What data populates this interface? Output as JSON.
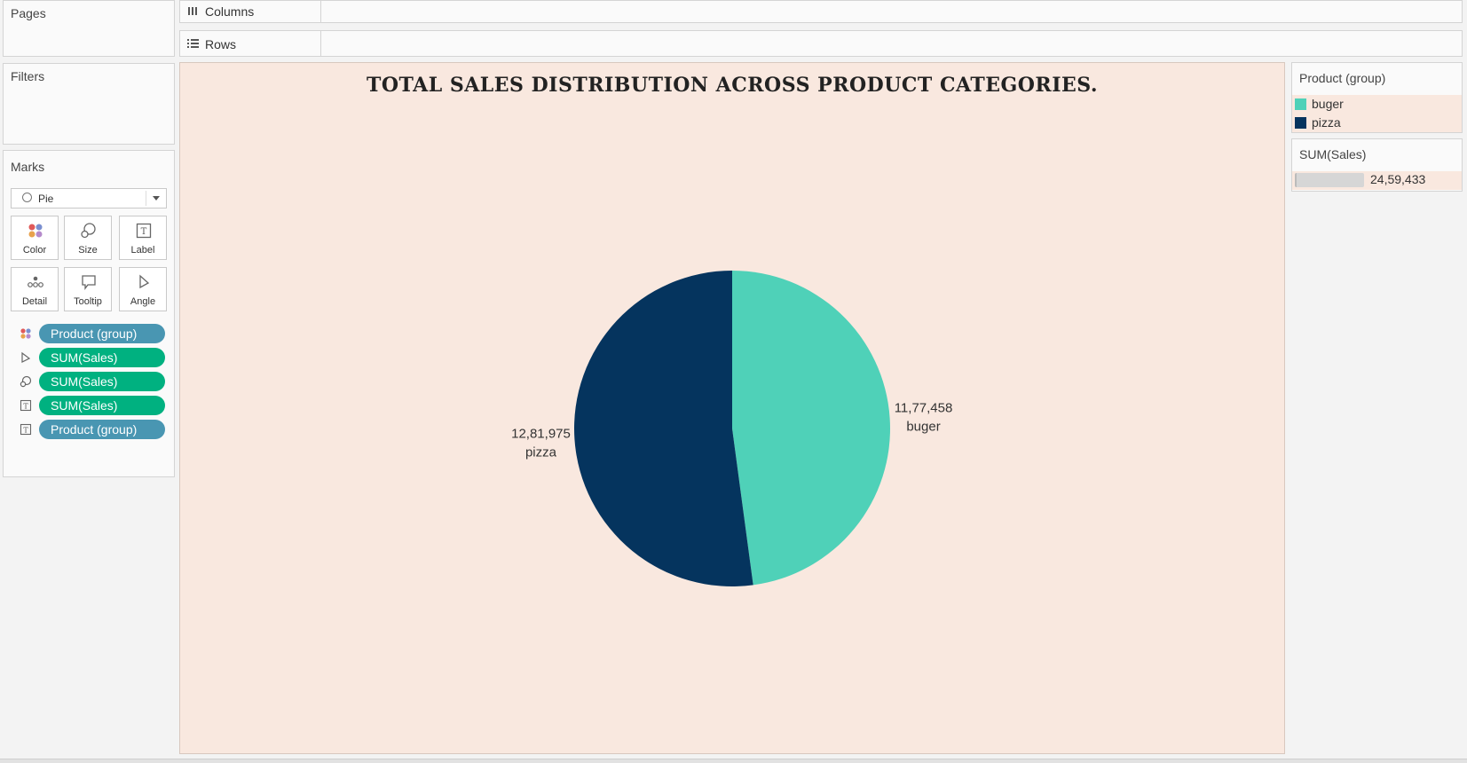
{
  "cards": {
    "pages": "Pages",
    "filters": "Filters",
    "marks": "Marks"
  },
  "marks": {
    "type": "Pie",
    "buttons": [
      "Color",
      "Size",
      "Label",
      "Detail",
      "Tooltip",
      "Angle"
    ],
    "pills": [
      {
        "label": "Product (group)",
        "kind": "dimension",
        "icon": "color-dots-icon"
      },
      {
        "label": "SUM(Sales)",
        "kind": "measure",
        "icon": "angle-icon"
      },
      {
        "label": "SUM(Sales)",
        "kind": "measure",
        "icon": "size-icon"
      },
      {
        "label": "SUM(Sales)",
        "kind": "measure",
        "icon": "label-icon"
      },
      {
        "label": "Product (group)",
        "kind": "dimension",
        "icon": "label-icon"
      }
    ]
  },
  "shelves": {
    "columns": "Columns",
    "rows": "Rows"
  },
  "legend": {
    "color_title": "Product (group)",
    "items": [
      {
        "label": "buger",
        "color": "#4fd1b8"
      },
      {
        "label": "pizza",
        "color": "#05345e"
      }
    ],
    "size_title": "SUM(Sales)",
    "size_value": "24,59,433"
  },
  "chart_data": {
    "type": "pie",
    "title": "TOTAL SALES DISTRIBUTION ACROSS PRODUCT CATEGORIES.",
    "categories": [
      "buger",
      "pizza"
    ],
    "values": [
      1177458,
      1281975
    ],
    "value_labels": [
      "11,77,458",
      "12,81,975"
    ],
    "colors": [
      "#4fd1b8",
      "#05345e"
    ],
    "legend_placement": "right"
  },
  "colors": {
    "view_background": "#f9e8df",
    "dimension_pill": "#4996b2",
    "measure_pill": "#00b180"
  }
}
